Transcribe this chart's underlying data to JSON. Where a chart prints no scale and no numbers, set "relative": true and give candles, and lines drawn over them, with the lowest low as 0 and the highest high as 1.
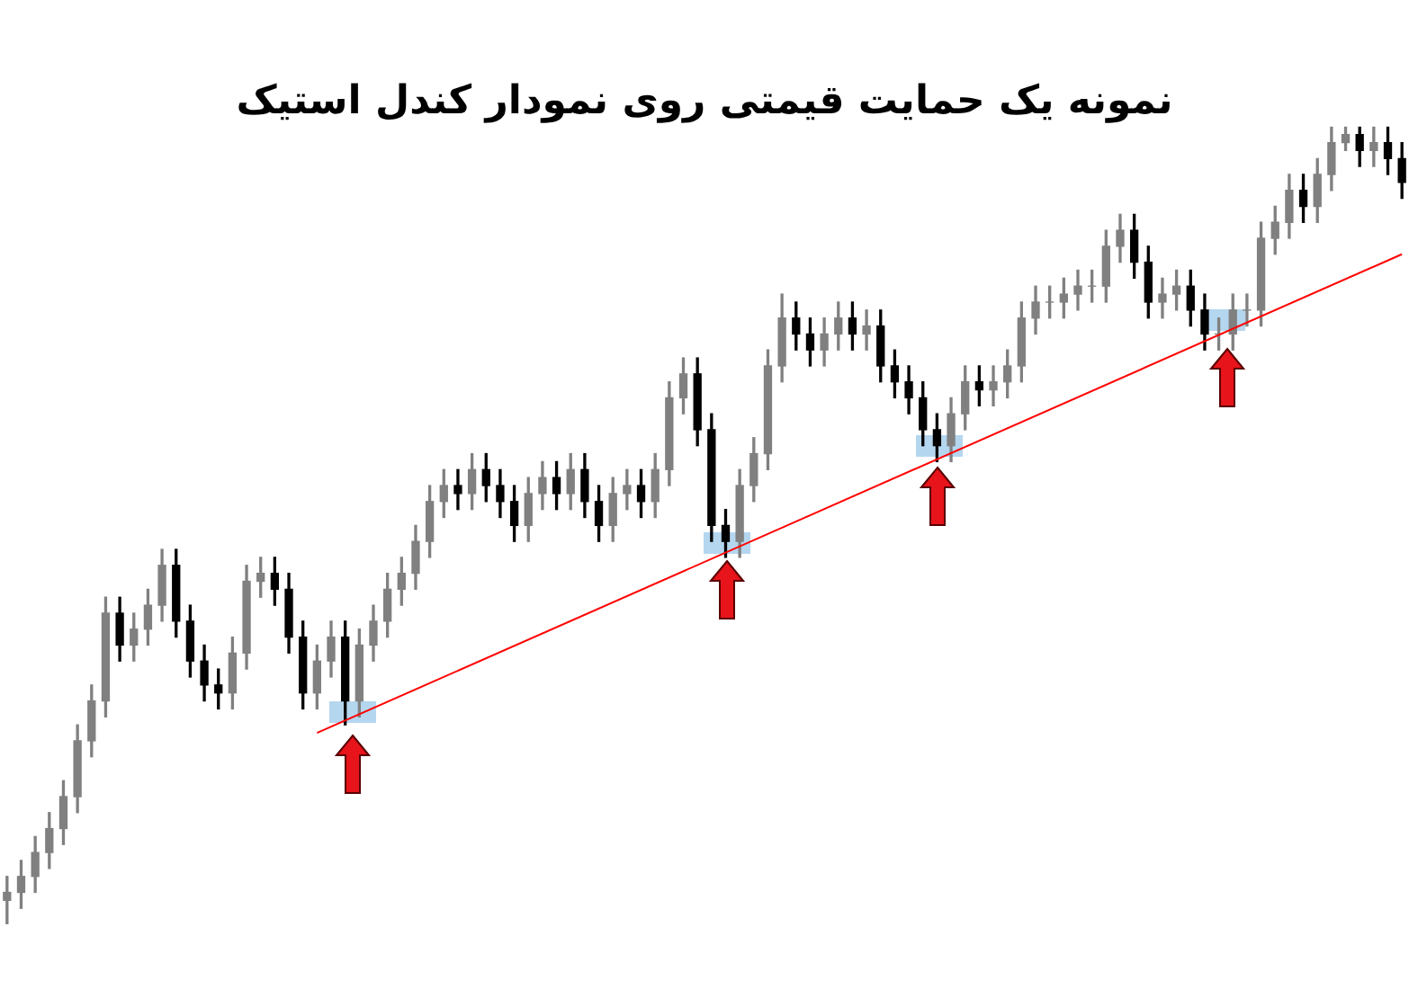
{
  "chart_data": {
    "type": "candlestick",
    "title": "نمونه یک حمایت قیمتی روی نمودار کندل استیک",
    "relative": true,
    "tick_labels": false,
    "categories": [
      null,
      null,
      null,
      null,
      null,
      null,
      null,
      null,
      null,
      null,
      null,
      null,
      null,
      null,
      null,
      null,
      null,
      null,
      null,
      null,
      null,
      null,
      null,
      null,
      null,
      null,
      null,
      null,
      null,
      null,
      null,
      null,
      null,
      null,
      null,
      null,
      null,
      null,
      null,
      null,
      null,
      null,
      null,
      null,
      null,
      null,
      null,
      null,
      null,
      null,
      null,
      null,
      null,
      null,
      null,
      null,
      null,
      null,
      null,
      null,
      null,
      null,
      null,
      null,
      null,
      null,
      null,
      null,
      null,
      null,
      null,
      null,
      null,
      null,
      null,
      null,
      null,
      null,
      null,
      null,
      null,
      null,
      null,
      null,
      null,
      null,
      null,
      null,
      null,
      null,
      null,
      null,
      null,
      null,
      null,
      null,
      null,
      null,
      null,
      null
    ],
    "ohlc": [
      [
        0.03,
        0.06,
        0,
        0.04
      ],
      [
        0.04,
        0.08,
        0.02,
        0.06
      ],
      [
        0.06,
        0.11,
        0.04,
        0.09
      ],
      [
        0.09,
        0.14,
        0.07,
        0.12
      ],
      [
        0.12,
        0.18,
        0.1,
        0.16
      ],
      [
        0.16,
        0.25,
        0.14,
        0.23
      ],
      [
        0.23,
        0.3,
        0.21,
        0.28
      ],
      [
        0.28,
        0.41,
        0.26,
        0.39
      ],
      [
        0.39,
        0.41,
        0.33,
        0.35
      ],
      [
        0.35,
        0.39,
        0.33,
        0.37
      ],
      [
        0.37,
        0.42,
        0.35,
        0.4
      ],
      [
        0.4,
        0.47,
        0.38,
        0.45
      ],
      [
        0.45,
        0.47,
        0.36,
        0.38
      ],
      [
        0.38,
        0.4,
        0.31,
        0.33
      ],
      [
        0.33,
        0.35,
        0.28,
        0.3
      ],
      [
        0.3,
        0.32,
        0.27,
        0.29
      ],
      [
        0.29,
        0.36,
        0.27,
        0.34
      ],
      [
        0.34,
        0.45,
        0.32,
        0.43
      ],
      [
        0.43,
        0.46,
        0.41,
        0.44
      ],
      [
        0.44,
        0.46,
        0.4,
        0.42
      ],
      [
        0.42,
        0.44,
        0.34,
        0.36
      ],
      [
        0.36,
        0.38,
        0.27,
        0.29
      ],
      [
        0.29,
        0.35,
        0.27,
        0.33
      ],
      [
        0.33,
        0.38,
        0.31,
        0.36
      ],
      [
        0.36,
        0.38,
        0.25,
        0.28
      ],
      [
        0.28,
        0.37,
        0.26,
        0.35
      ],
      [
        0.35,
        0.4,
        0.33,
        0.38
      ],
      [
        0.38,
        0.44,
        0.36,
        0.42
      ],
      [
        0.42,
        0.46,
        0.4,
        0.44
      ],
      [
        0.44,
        0.5,
        0.42,
        0.48
      ],
      [
        0.48,
        0.55,
        0.46,
        0.53
      ],
      [
        0.53,
        0.57,
        0.51,
        0.55
      ],
      [
        0.55,
        0.57,
        0.52,
        0.54
      ],
      [
        0.54,
        0.59,
        0.52,
        0.57
      ],
      [
        0.57,
        0.59,
        0.53,
        0.55
      ],
      [
        0.55,
        0.57,
        0.51,
        0.53
      ],
      [
        0.53,
        0.55,
        0.48,
        0.5
      ],
      [
        0.5,
        0.56,
        0.48,
        0.54
      ],
      [
        0.54,
        0.58,
        0.52,
        0.56
      ],
      [
        0.56,
        0.58,
        0.52,
        0.54
      ],
      [
        0.54,
        0.59,
        0.52,
        0.57
      ],
      [
        0.57,
        0.59,
        0.51,
        0.53
      ],
      [
        0.53,
        0.55,
        0.48,
        0.5
      ],
      [
        0.5,
        0.56,
        0.48,
        0.54
      ],
      [
        0.54,
        0.57,
        0.52,
        0.55
      ],
      [
        0.55,
        0.57,
        0.51,
        0.53
      ],
      [
        0.53,
        0.59,
        0.51,
        0.57
      ],
      [
        0.57,
        0.68,
        0.55,
        0.66
      ],
      [
        0.66,
        0.71,
        0.64,
        0.69
      ],
      [
        0.69,
        0.71,
        0.6,
        0.62
      ],
      [
        0.62,
        0.64,
        0.48,
        0.5
      ],
      [
        0.5,
        0.52,
        0.46,
        0.48
      ],
      [
        0.48,
        0.57,
        0.46,
        0.55
      ],
      [
        0.55,
        0.61,
        0.53,
        0.59
      ],
      [
        0.59,
        0.72,
        0.57,
        0.7
      ],
      [
        0.7,
        0.79,
        0.68,
        0.76
      ],
      [
        0.76,
        0.78,
        0.72,
        0.74
      ],
      [
        0.74,
        0.76,
        0.7,
        0.72
      ],
      [
        0.72,
        0.76,
        0.7,
        0.74
      ],
      [
        0.74,
        0.78,
        0.72,
        0.76
      ],
      [
        0.76,
        0.78,
        0.72,
        0.74
      ],
      [
        0.74,
        0.77,
        0.72,
        0.75
      ],
      [
        0.75,
        0.77,
        0.68,
        0.7
      ],
      [
        0.7,
        0.72,
        0.66,
        0.68
      ],
      [
        0.68,
        0.7,
        0.64,
        0.66
      ],
      [
        0.66,
        0.68,
        0.6,
        0.62
      ],
      [
        0.62,
        0.64,
        0.58,
        0.6
      ],
      [
        0.6,
        0.66,
        0.58,
        0.64
      ],
      [
        0.64,
        0.7,
        0.62,
        0.68
      ],
      [
        0.68,
        0.7,
        0.65,
        0.67
      ],
      [
        0.67,
        0.7,
        0.65,
        0.68
      ],
      [
        0.68,
        0.72,
        0.66,
        0.7
      ],
      [
        0.7,
        0.78,
        0.68,
        0.76
      ],
      [
        0.76,
        0.8,
        0.74,
        0.78
      ],
      [
        0.78,
        0.8,
        0.76,
        0.78
      ],
      [
        0.78,
        0.81,
        0.76,
        0.79
      ],
      [
        0.79,
        0.82,
        0.77,
        0.8
      ],
      [
        0.8,
        0.82,
        0.78,
        0.8
      ],
      [
        0.8,
        0.87,
        0.78,
        0.85
      ],
      [
        0.85,
        0.89,
        0.83,
        0.87
      ],
      [
        0.87,
        0.89,
        0.81,
        0.83
      ],
      [
        0.83,
        0.85,
        0.76,
        0.78
      ],
      [
        0.78,
        0.81,
        0.76,
        0.79
      ],
      [
        0.79,
        0.82,
        0.77,
        0.8
      ],
      [
        0.8,
        0.82,
        0.75,
        0.77
      ],
      [
        0.77,
        0.79,
        0.72,
        0.74
      ],
      [
        0.74,
        0.76,
        0.72,
        0.74
      ],
      [
        0.74,
        0.79,
        0.72,
        0.77
      ],
      [
        0.77,
        0.79,
        0.75,
        0.77
      ],
      [
        0.77,
        0.88,
        0.75,
        0.86
      ],
      [
        0.86,
        0.9,
        0.84,
        0.88
      ],
      [
        0.88,
        0.94,
        0.86,
        0.92
      ],
      [
        0.92,
        0.94,
        0.88,
        0.9
      ],
      [
        0.9,
        0.96,
        0.88,
        0.94
      ],
      [
        0.94,
        1.0,
        0.92,
        0.98
      ],
      [
        0.98,
        1.0,
        0.97,
        0.99
      ],
      [
        0.99,
        1.0,
        0.95,
        0.97
      ],
      [
        0.97,
        1.0,
        0.95,
        0.98
      ],
      [
        0.98,
        1.0,
        0.94,
        0.96
      ],
      [
        0.96,
        0.98,
        0.91,
        0.93
      ]
    ],
    "colors": [
      "#808080",
      "#808080",
      "#808080",
      "#808080",
      "#808080",
      "#808080",
      "#808080",
      "#808080",
      "#000000",
      "#808080",
      "#808080",
      "#808080",
      "#000000",
      "#000000",
      "#000000",
      "#000000",
      "#808080",
      "#808080",
      "#808080",
      "#000000",
      "#000000",
      "#000000",
      "#808080",
      "#808080",
      "#000000",
      "#808080",
      "#808080",
      "#808080",
      "#808080",
      "#808080",
      "#808080",
      "#808080",
      "#000000",
      "#808080",
      "#000000",
      "#000000",
      "#000000",
      "#808080",
      "#808080",
      "#000000",
      "#808080",
      "#000000",
      "#000000",
      "#808080",
      "#808080",
      "#000000",
      "#808080",
      "#808080",
      "#808080",
      "#000000",
      "#000000",
      "#000000",
      "#808080",
      "#808080",
      "#808080",
      "#808080",
      "#000000",
      "#000000",
      "#808080",
      "#808080",
      "#000000",
      "#808080",
      "#000000",
      "#000000",
      "#000000",
      "#000000",
      "#000000",
      "#808080",
      "#808080",
      "#000000",
      "#808080",
      "#808080",
      "#808080",
      "#808080",
      "#808080",
      "#808080",
      "#808080",
      "#808080",
      "#808080",
      "#808080",
      "#000000",
      "#000000",
      "#808080",
      "#808080",
      "#000000",
      "#000000",
      "#808080",
      "#808080",
      "#808080",
      "#808080",
      "#808080",
      "#808080",
      "#000000",
      "#808080",
      "#808080",
      "#808080",
      "#000000",
      "#808080",
      "#000000",
      "#000000"
    ],
    "series": [
      {
        "type": "line",
        "color": "#ff0000",
        "values": [
          null,
          null,
          null,
          null,
          null,
          null,
          null,
          null,
          null,
          null,
          null,
          null,
          null,
          null,
          null,
          null,
          null,
          null,
          null,
          null,
          null,
          null,
          0.24,
          null,
          null,
          null,
          null,
          null,
          null,
          null,
          null,
          null,
          null,
          null,
          null,
          null,
          null,
          null,
          null,
          null,
          null,
          null,
          null,
          null,
          null,
          null,
          null,
          null,
          null,
          null,
          null,
          null,
          null,
          null,
          null,
          null,
          null,
          null,
          null,
          null,
          null,
          null,
          null,
          null,
          null,
          null,
          null,
          null,
          null,
          null,
          null,
          null,
          null,
          null,
          null,
          null,
          null,
          null,
          null,
          null,
          null,
          null,
          null,
          null,
          null,
          null,
          null,
          null,
          null,
          null,
          null,
          null,
          null,
          null,
          null,
          null,
          null,
          null,
          null,
          0.84
        ]
      }
    ]
  }
}
